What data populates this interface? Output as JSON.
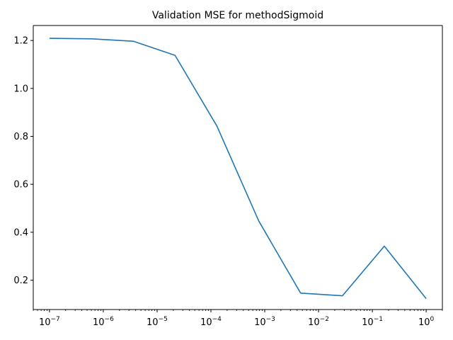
{
  "chart_data": {
    "type": "line",
    "title": "Validation MSE for methodSigmoid",
    "xlabel": "",
    "ylabel": "",
    "xscale": "log",
    "grid": false,
    "legend": "none",
    "line_color": "#1f77b4",
    "xlim": [
      5e-08,
      2
    ],
    "ylim": [
      0.0775,
      1.2625
    ],
    "x_ticks": [
      {
        "base": "10",
        "exp": "−7",
        "value": 1e-07
      },
      {
        "base": "10",
        "exp": "−6",
        "value": 1e-06
      },
      {
        "base": "10",
        "exp": "−5",
        "value": 1e-05
      },
      {
        "base": "10",
        "exp": "−4",
        "value": 0.0001
      },
      {
        "base": "10",
        "exp": "−3",
        "value": 0.001
      },
      {
        "base": "10",
        "exp": "−2",
        "value": 0.01
      },
      {
        "base": "10",
        "exp": "−1",
        "value": 0.1
      },
      {
        "base": "10",
        "exp": "0",
        "value": 1
      }
    ],
    "y_ticks": [
      "0.2",
      "0.4",
      "0.6",
      "0.8",
      "1.0",
      "1.2"
    ],
    "series": [
      {
        "x": [
          1e-07,
          5.995e-07,
          3.594e-06,
          2.154e-05,
          0.0001292,
          0.0007743,
          0.004642,
          0.02783,
          0.1668,
          1.0
        ],
        "y": [
          1.209,
          1.207,
          1.197,
          1.138,
          0.843,
          0.447,
          0.146,
          0.135,
          0.342,
          0.123
        ]
      }
    ]
  }
}
